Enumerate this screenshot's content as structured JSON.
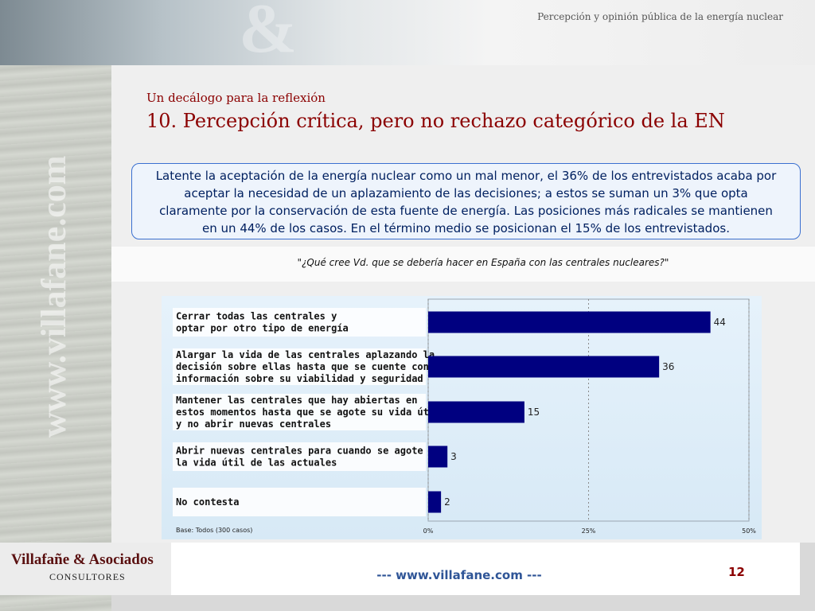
{
  "header": {
    "title": "Percepción y opinión pública de la energía nuclear",
    "decoration": "&"
  },
  "side": {
    "watermark": "www.villafane.com"
  },
  "main": {
    "kicker": "Un decálogo para la reflexión",
    "title": "10. Percepción crítica, pero no rechazo categórico de la EN",
    "summary_lines": [
      "Latente la aceptación de la energía nuclear como un mal menor, el 36% de los entrevistados acaba por",
      "aceptar la necesidad de un aplazamiento de las decisiones; a estos se suman un 3% que opta",
      "claramente por la conservación de esta fuente de energía. Las posiciones más radicales se mantienen",
      "en un 44% de los casos. En el término medio se posicionan el 15% de los entrevistados."
    ],
    "question": "\"¿Qué cree Vd. que se debería hacer en España con las centrales nucleares?\""
  },
  "chart_data": {
    "type": "bar",
    "orientation": "horizontal",
    "categories": [
      [
        "Cerrar todas las centrales y",
        "optar por otro tipo de energía"
      ],
      [
        "Alargar la vida de las centrales aplazando la",
        "decisión sobre ellas hasta que se cuente con",
        "información sobre su viabilidad y seguridad"
      ],
      [
        "Mantener las centrales que hay abiertas en",
        "estos momentos hasta que se agote su vida útil",
        "y no abrir nuevas centrales"
      ],
      [
        "Abrir nuevas centrales para cuando se agote",
        "la vida útil de las actuales"
      ],
      [
        "No contesta"
      ]
    ],
    "values": [
      44,
      36,
      15,
      3,
      2
    ],
    "xlim": [
      0,
      50
    ],
    "x_ticks": [
      "0%",
      "25%",
      "50%"
    ],
    "x_tick_values": [
      0,
      25,
      50
    ],
    "grid": true,
    "bar_color": "#000080",
    "note": "Base: Todos (300 casos)"
  },
  "footer": {
    "brand": "Villafañe & Asociados",
    "brand_sub": "CONSULTORES",
    "link": "---  www.villafane.com  ---",
    "page": "12"
  }
}
